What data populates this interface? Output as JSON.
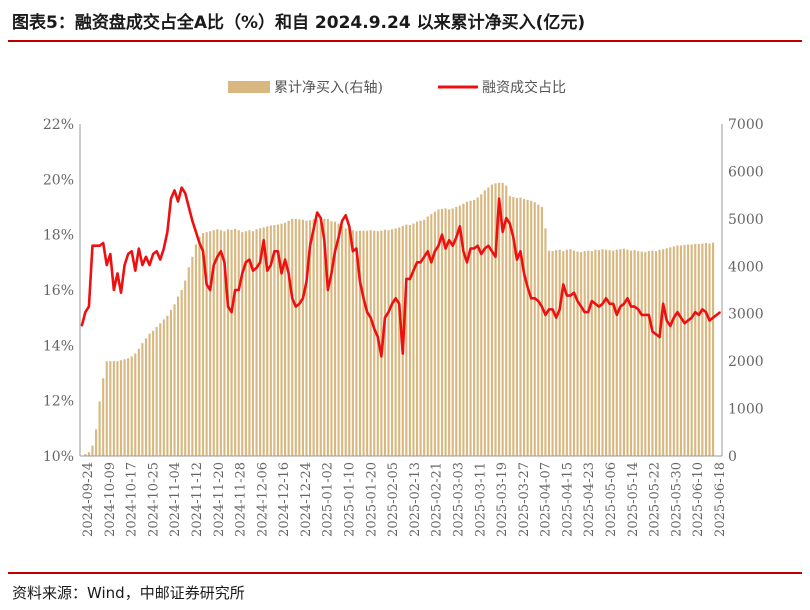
{
  "title": "图表5：融资盘成交占全A比（%）和自 2024.9.24 以来累计净买入(亿元)",
  "source": "资料来源：Wind，中邮证券研究所",
  "chart_data": {
    "type": "bar+line",
    "legend": {
      "position": "top-center",
      "entries": [
        "累计净买入(右轴)",
        "融资成交占比"
      ]
    },
    "colors": {
      "bar": "#d8b880",
      "line": "#ee1010"
    },
    "x_tick_labels": [
      "2024-09-24",
      "2024-10-09",
      "2024-10-17",
      "2024-10-25",
      "2024-11-04",
      "2024-11-12",
      "2024-11-20",
      "2024-11-28",
      "2024-12-06",
      "2024-12-16",
      "2024-12-24",
      "2025-01-02",
      "2025-01-10",
      "2025-01-20",
      "2025-02-05",
      "2025-02-13",
      "2025-02-21",
      "2025-03-03",
      "2025-03-11",
      "2025-03-19",
      "2025-03-27",
      "2025-04-07",
      "2025-04-15",
      "2025-04-23",
      "2025-05-06",
      "2025-05-14",
      "2025-05-22",
      "2025-05-30",
      "2025-06-10",
      "2025-06-18"
    ],
    "y_left": {
      "min": 10,
      "max": 22,
      "step": 2,
      "tick_suffix": "%"
    },
    "y_right": {
      "min": 0,
      "max": 7000,
      "step": 1000
    },
    "grid": false,
    "n_points": 178,
    "series": [
      {
        "name": "累计净买入(右轴)",
        "type": "bar",
        "axis": "right",
        "values": [
          0,
          40,
          80,
          220,
          560,
          1150,
          1640,
          2000,
          2000,
          2000,
          2000,
          2020,
          2040,
          2060,
          2100,
          2160,
          2260,
          2380,
          2480,
          2580,
          2640,
          2720,
          2800,
          2880,
          2960,
          3080,
          3200,
          3360,
          3500,
          3700,
          3980,
          4200,
          4460,
          4620,
          4700,
          4720,
          4740,
          4760,
          4780,
          4760,
          4740,
          4780,
          4770,
          4790,
          4760,
          4720,
          4740,
          4760,
          4740,
          4780,
          4800,
          4820,
          4840,
          4860,
          4870,
          4880,
          4900,
          4920,
          4960,
          5000,
          5000,
          4990,
          4980,
          4960,
          4970,
          4990,
          4980,
          5000,
          5000,
          5000,
          4950,
          4940,
          4900,
          4850,
          4800,
          4780,
          4760,
          4740,
          4750,
          4750,
          4750,
          4760,
          4750,
          4740,
          4750,
          4770,
          4760,
          4780,
          4800,
          4820,
          4850,
          4880,
          4870,
          4900,
          4940,
          4960,
          4980,
          5050,
          5100,
          5150,
          5200,
          5210,
          5220,
          5200,
          5220,
          5250,
          5280,
          5320,
          5360,
          5380,
          5400,
          5450,
          5520,
          5600,
          5660,
          5720,
          5750,
          5760,
          5760,
          5700,
          5480,
          5460,
          5440,
          5450,
          5420,
          5400,
          5380,
          5350,
          5300,
          5250,
          4800,
          4330,
          4320,
          4340,
          4350,
          4320,
          4350,
          4360,
          4330,
          4310,
          4300,
          4320,
          4330,
          4320,
          4350,
          4340,
          4360,
          4350,
          4340,
          4330,
          4350,
          4360,
          4370,
          4350,
          4330,
          4340,
          4320,
          4310,
          4300,
          4320,
          4330,
          4320,
          4350,
          4360,
          4380,
          4400,
          4420,
          4440,
          4440,
          4450,
          4460,
          4460,
          4470,
          4470,
          4480,
          4490,
          4480,
          4500
        ]
      },
      {
        "name": "融资成交占比",
        "type": "line",
        "axis": "left",
        "values": [
          14.7,
          15.2,
          15.4,
          17.6,
          17.6,
          17.6,
          17.7,
          16.9,
          17.3,
          16.0,
          16.6,
          15.9,
          16.9,
          17.3,
          17.4,
          16.7,
          17.5,
          16.9,
          17.2,
          16.9,
          17.3,
          17.4,
          17.1,
          17.5,
          18.1,
          19.3,
          19.6,
          19.2,
          19.7,
          19.5,
          19.0,
          18.5,
          18.1,
          17.7,
          17.4,
          16.2,
          16.0,
          16.9,
          17.2,
          17.4,
          17.0,
          15.4,
          15.2,
          16.0,
          16.0,
          16.6,
          17.0,
          17.1,
          16.7,
          16.8,
          17.0,
          17.8,
          16.7,
          16.9,
          17.4,
          17.4,
          16.6,
          17.1,
          16.6,
          15.7,
          15.4,
          15.5,
          15.7,
          16.3,
          17.6,
          18.2,
          18.8,
          18.6,
          17.8,
          16.0,
          16.6,
          17.4,
          17.9,
          18.5,
          18.7,
          18.3,
          17.4,
          17.5,
          16.3,
          15.7,
          15.2,
          15.0,
          14.6,
          14.3,
          13.6,
          15.0,
          15.2,
          15.5,
          15.7,
          15.5,
          13.7,
          16.4,
          16.4,
          16.7,
          17.0,
          17.0,
          17.2,
          17.4,
          17.0,
          17.4,
          17.6,
          18.0,
          17.5,
          17.8,
          17.6,
          17.9,
          18.3,
          17.4,
          17.0,
          17.5,
          17.5,
          17.6,
          17.3,
          17.5,
          17.6,
          17.4,
          17.2,
          19.3,
          18.1,
          18.6,
          18.4,
          17.9,
          17.1,
          17.4,
          16.6,
          16.1,
          15.7,
          15.7,
          15.6,
          15.4,
          15.1,
          15.3,
          15.3,
          15.0,
          15.3,
          16.2,
          15.8,
          15.8,
          15.9,
          15.6,
          15.4,
          15.2,
          15.2,
          15.6,
          15.5,
          15.4,
          15.5,
          15.7,
          15.5,
          15.5,
          15.1,
          15.4,
          15.5,
          15.7,
          15.4,
          15.4,
          15.3,
          15.1,
          15.1,
          15.1,
          14.5,
          14.4,
          14.3,
          15.5,
          14.9,
          14.7,
          15.0,
          15.2,
          15.0,
          14.8,
          14.9,
          15.0,
          15.2,
          15.1,
          15.3,
          15.2,
          14.9,
          15.0,
          15.1,
          15.2
        ]
      }
    ]
  }
}
